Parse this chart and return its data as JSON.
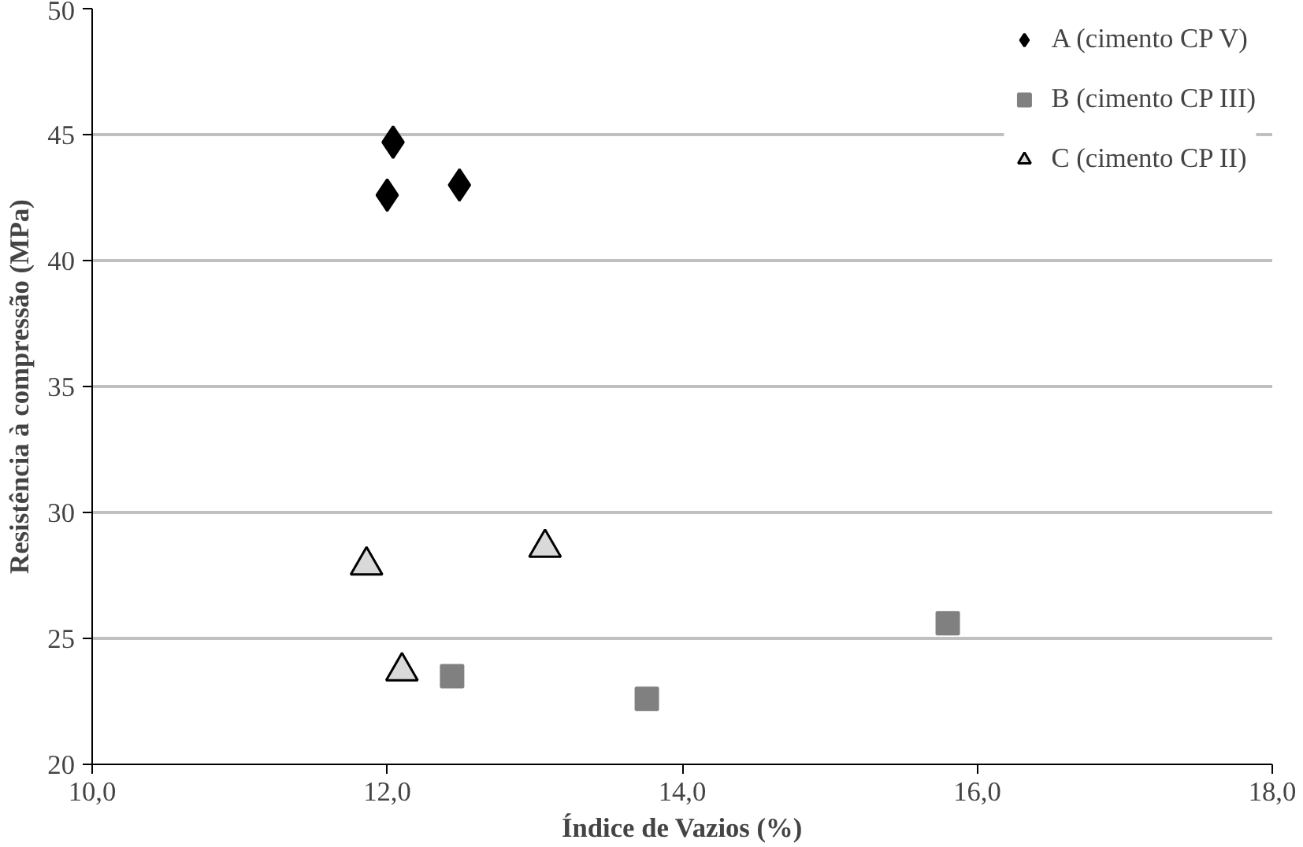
{
  "chart_data": {
    "type": "scatter",
    "xlabel": "Índice de Vazios (%)",
    "ylabel": "Resistência à compressão (MPa)",
    "xlim": [
      10,
      18
    ],
    "ylim": [
      20,
      50
    ],
    "xticks": [
      {
        "value": 10,
        "label": "10,0"
      },
      {
        "value": 12,
        "label": "12,0"
      },
      {
        "value": 14,
        "label": "14,0"
      },
      {
        "value": 16,
        "label": "16,0"
      },
      {
        "value": 18,
        "label": "18,0"
      }
    ],
    "yticks": [
      20,
      25,
      30,
      35,
      40,
      45,
      50
    ],
    "grid": "y",
    "legend": "top right",
    "series": [
      {
        "name": "A (cimento CP V)",
        "color": "#000000",
        "marker": "diamond",
        "x": [
          12.04,
          12.0,
          12.49
        ],
        "values": [
          44.7,
          42.6,
          43.0
        ]
      },
      {
        "name": "B (cimento CP III)",
        "color": "#808080",
        "marker": "square",
        "x": [
          12.44,
          13.76,
          15.8
        ],
        "values": [
          23.5,
          22.6,
          25.6
        ]
      },
      {
        "name": "C (cimento CP II)",
        "color": "#d9d9d9",
        "marker": "triangle",
        "x": [
          11.86,
          13.07,
          12.1
        ],
        "values": [
          27.9,
          28.6,
          23.7
        ]
      }
    ]
  }
}
